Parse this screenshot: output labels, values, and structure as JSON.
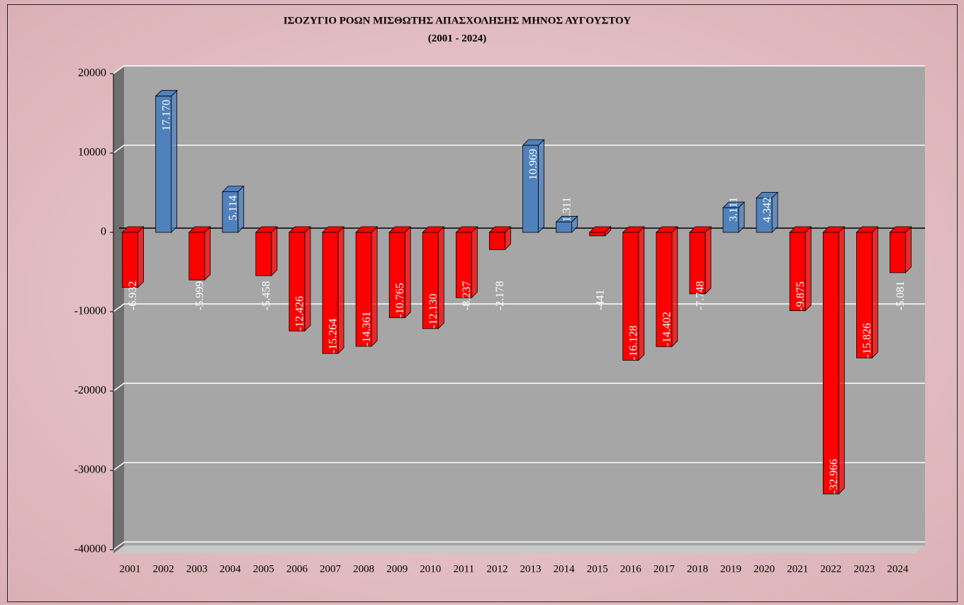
{
  "chart_data": {
    "type": "bar3d",
    "title": "ΙΣΟΖΥΓΙΟ ΡΟΩΝ ΜΙΣΘΩΤΗΣ ΑΠΑΣΧΟΛΗΣΗΣ ΜΗΝΟΣ  ΑΥΓΟΥΣΤΟΥ",
    "subtitle": "(2001 - 2024)",
    "categories": [
      "2001",
      "2002",
      "2003",
      "2004",
      "2005",
      "2006",
      "2007",
      "2008",
      "2009",
      "2010",
      "2011",
      "2012",
      "2013",
      "2014",
      "2015",
      "2016",
      "2017",
      "2018",
      "2019",
      "2020",
      "2021",
      "2022",
      "2023",
      "2024"
    ],
    "values": [
      -6932,
      17170,
      -5999,
      5114,
      -5458,
      -12426,
      -15264,
      -14361,
      -10765,
      -12130,
      -8237,
      -2178,
      10969,
      1311,
      -441,
      -16128,
      -14402,
      -7748,
      3111,
      4342,
      -9875,
      -32966,
      -15826,
      -5081
    ],
    "value_labels": [
      "-6.932",
      "17.170",
      "-5.999",
      "5.114",
      "-5.458",
      "-12.426",
      "-15.264",
      "-14.361",
      "-10.765",
      "-12.130",
      "-8.237",
      "-2.178",
      "10.969",
      "1.311",
      "-441",
      "-16.128",
      "-14.402",
      "-7.748",
      "3.111",
      "4.342",
      "-9.875",
      "-32.966",
      "-15.826",
      "-5.081"
    ],
    "positive_color": "#4f81bd",
    "negative_color": "#ff0000",
    "ylim": [
      -40000,
      20000
    ],
    "yticks": [
      -40000,
      -30000,
      -20000,
      -10000,
      0,
      10000,
      20000
    ],
    "grid": true
  }
}
